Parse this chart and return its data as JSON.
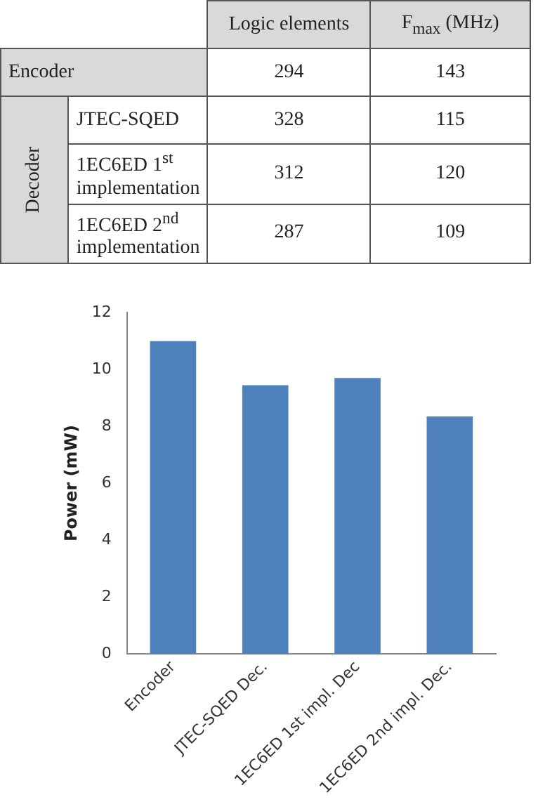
{
  "chart_data": [
    {
      "type": "other",
      "categories": [
        "Encoder",
        "JTEC-SQED",
        "1EC6ED 1$^{st}$ implementation",
        "1EC6ED 2$^{nd}$ implementation"
      ],
      "series": [
        {
          "name": "Logic elements",
          "values": [
            294,
            328,
            312,
            287
          ]
        },
        {
          "name": "F$_{max}$ (MHz)",
          "values": [
            143,
            115,
            120,
            109
          ]
        }
      ],
      "annotations": [
        "Decoder"
      ],
      "data_labels": true
    },
    {
      "type": "bar",
      "categories": [
        "Encoder",
        "JTEC-SQED Dec.",
        "1EC6ED 1st impl. Dec",
        "1EC6ED 2nd impl. Dec."
      ],
      "values": [
        11.0,
        9.45,
        9.7,
        8.35
      ],
      "color": "#4f81bd",
      "ylabel": "Power (mW)",
      "ylim": [
        0,
        12
      ],
      "yticks": [
        0,
        2,
        4,
        6,
        8,
        10,
        12
      ],
      "grid": false,
      "legend": false
    }
  ]
}
